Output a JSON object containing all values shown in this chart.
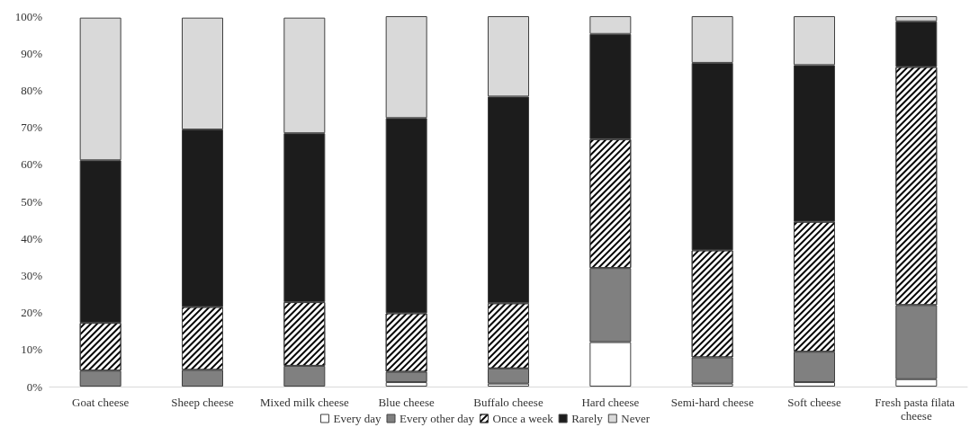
{
  "chart_data": {
    "type": "bar",
    "stacked": true,
    "categories": [
      "Goat cheese",
      "Sheep cheese",
      "Mixed milk cheese",
      "Blue cheese",
      "Buffalo cheese",
      "Hard cheese",
      "Semi-hard cheese",
      "Soft cheese",
      "Fresh pasta filata cheese"
    ],
    "series": [
      {
        "name": "Every day",
        "color": "#ffffff",
        "values": [
          null,
          null,
          null,
          1.2,
          0.8,
          12.0,
          0.8,
          1.2,
          2.0
        ]
      },
      {
        "name": "Every other day",
        "color": "#808080",
        "values": [
          4.3,
          4.5,
          5.6,
          2.8,
          4.1,
          20.0,
          7.1,
          8.2,
          20.0
        ]
      },
      {
        "name": "Once a week",
        "color": "#ffffff",
        "values": [
          12.9,
          17.0,
          17.2,
          15.8,
          17.6,
          34.8,
          28.9,
          35.1,
          64.3
        ]
      },
      {
        "name": "Rarely",
        "color": "#1c1c1c",
        "values": [
          43.9,
          47.9,
          45.6,
          52.7,
          55.8,
          28.4,
          50.6,
          42.3,
          12.3
        ]
      },
      {
        "name": "Never",
        "color": "#d9d9d9",
        "values": [
          38.5,
          30.2,
          31.2,
          27.5,
          21.7,
          4.8,
          12.6,
          13.2,
          1.4
        ]
      }
    ],
    "ylim": [
      0,
      100
    ],
    "yticks": [
      {
        "value": 0,
        "label": "0%"
      },
      {
        "value": 10,
        "label": "10%"
      },
      {
        "value": 20,
        "label": "20%"
      },
      {
        "value": 30,
        "label": "30%"
      },
      {
        "value": 40,
        "label": "40%"
      },
      {
        "value": 50,
        "label": "50%"
      },
      {
        "value": 60,
        "label": "60%"
      },
      {
        "value": 70,
        "label": "70%"
      },
      {
        "value": 80,
        "label": "80%"
      },
      {
        "value": 90,
        "label": "90%"
      },
      {
        "value": 100,
        "label": "100%"
      }
    ],
    "grid": false,
    "legend": "bottom"
  }
}
